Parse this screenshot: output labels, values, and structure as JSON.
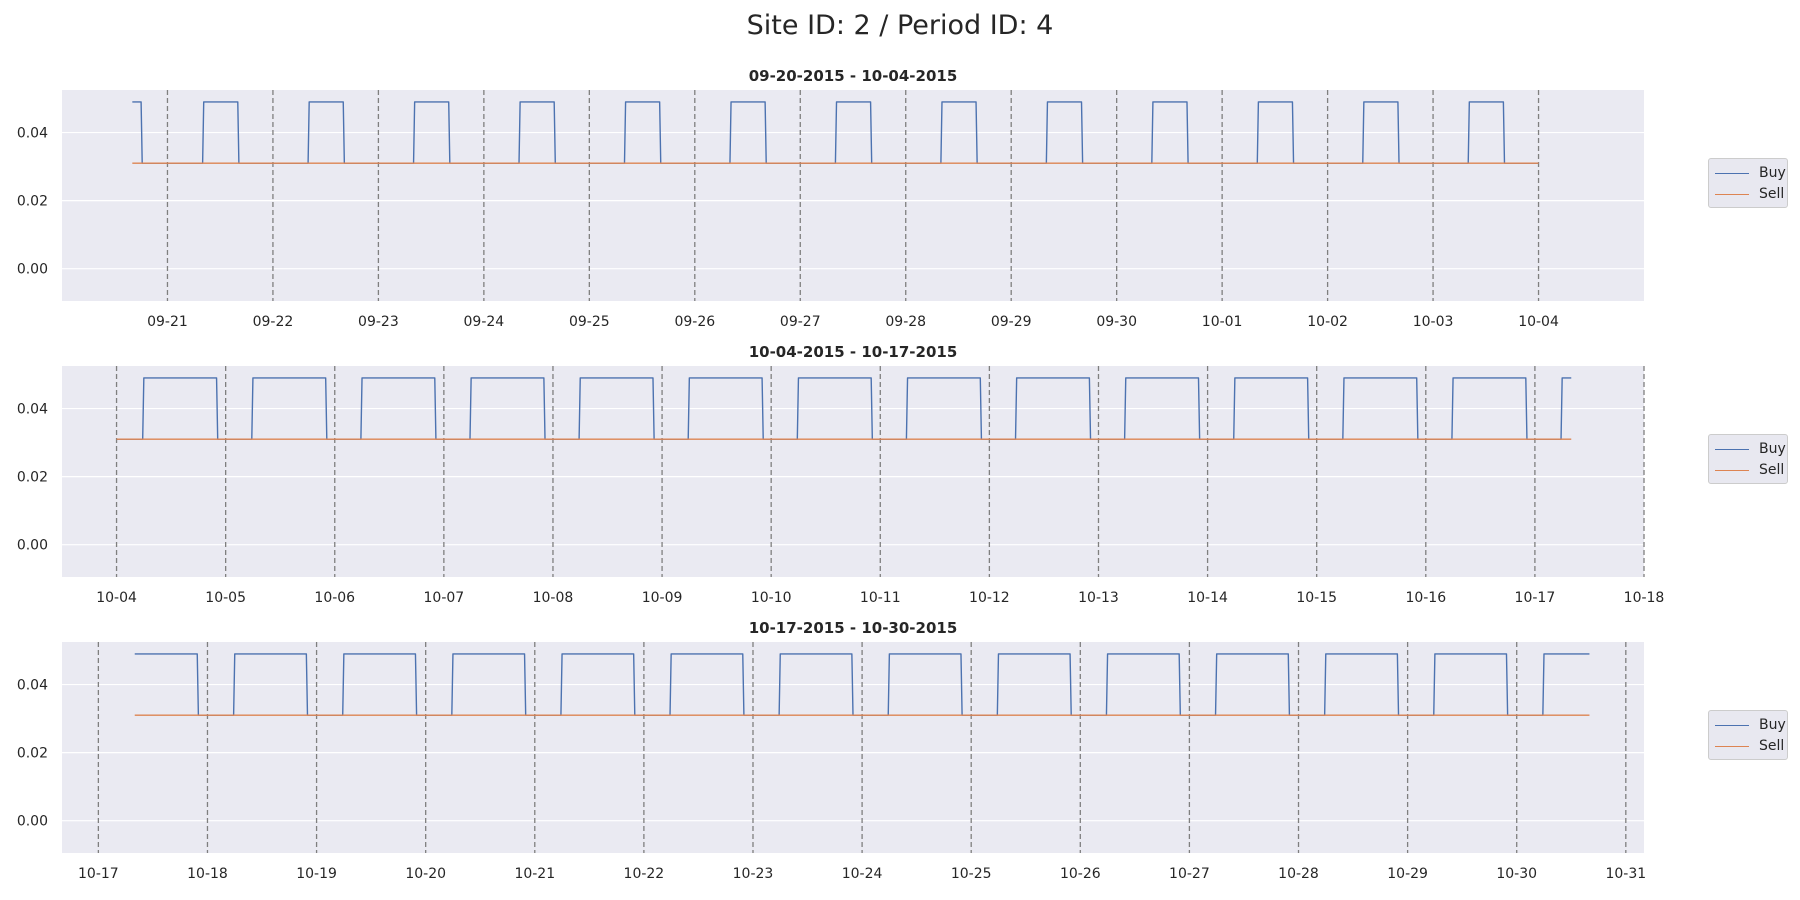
{
  "figure": {
    "suptitle": "Site ID: 2 / Period ID: 4"
  },
  "legend": {
    "buy_label": "Buy",
    "sell_label": "Sell"
  },
  "colors": {
    "buy": "#4c72b0",
    "sell": "#dd8452",
    "axes_bg": "#eaeaf2",
    "grid": "#ffffff",
    "day_divider": "#7f7f7f"
  },
  "chart_data": [
    {
      "type": "line",
      "title": "09-20-2015 - 10-04-2015",
      "xlim": [
        "2015-09-20 00:00",
        "2015-10-05 00:00"
      ],
      "ylim": [
        -0.0095,
        0.0525
      ],
      "yticks": [
        "0.00",
        "0.02",
        "0.04"
      ],
      "ytick_values": [
        0.0,
        0.02,
        0.04
      ],
      "xticks": [
        "09-21",
        "09-22",
        "09-23",
        "09-24",
        "09-25",
        "09-26",
        "09-27",
        "09-28",
        "09-29",
        "09-30",
        "10-01",
        "10-02",
        "10-03",
        "10-04"
      ],
      "xtick_dates": [
        "2015-09-21",
        "2015-09-22",
        "2015-09-23",
        "2015-09-24",
        "2015-09-25",
        "2015-09-26",
        "2015-09-27",
        "2015-09-28",
        "2015-09-29",
        "2015-09-30",
        "2015-10-01",
        "2015-10-02",
        "2015-10-03",
        "2015-10-04"
      ],
      "day_dividers": [
        "2015-09-21",
        "2015-09-22",
        "2015-09-23",
        "2015-09-24",
        "2015-09-25",
        "2015-09-26",
        "2015-09-27",
        "2015-09-28",
        "2015-09-29",
        "2015-09-30",
        "2015-10-01",
        "2015-10-02",
        "2015-10-03",
        "2015-10-04"
      ],
      "grid": true,
      "legend_position": "right",
      "series": [
        {
          "name": "Buy",
          "x": [
            "2015-09-20 16:00",
            "2015-09-20 18:00",
            "2015-09-20 18:15",
            "2015-09-21 08:00",
            "2015-09-21 08:15",
            "2015-09-21 16:00",
            "2015-09-21 16:15",
            "2015-09-22 08:00",
            "2015-09-22 08:15",
            "2015-09-22 16:00",
            "2015-09-22 16:15",
            "2015-09-23 08:00",
            "2015-09-23 08:15",
            "2015-09-23 16:00",
            "2015-09-23 16:15",
            "2015-09-24 08:00",
            "2015-09-24 08:15",
            "2015-09-24 16:00",
            "2015-09-24 16:15",
            "2015-09-25 08:00",
            "2015-09-25 08:15",
            "2015-09-25 16:00",
            "2015-09-25 16:15",
            "2015-09-26 08:00",
            "2015-09-26 08:15",
            "2015-09-26 16:00",
            "2015-09-26 16:15",
            "2015-09-27 08:00",
            "2015-09-27 08:15",
            "2015-09-27 16:00",
            "2015-09-27 16:15",
            "2015-09-28 08:00",
            "2015-09-28 08:15",
            "2015-09-28 16:00",
            "2015-09-28 16:15",
            "2015-09-29 08:00",
            "2015-09-29 08:15",
            "2015-09-29 16:00",
            "2015-09-29 16:15",
            "2015-09-30 08:00",
            "2015-09-30 08:15",
            "2015-09-30 16:00",
            "2015-09-30 16:15",
            "2015-10-01 08:00",
            "2015-10-01 08:15",
            "2015-10-01 16:00",
            "2015-10-01 16:15",
            "2015-10-02 08:00",
            "2015-10-02 08:15",
            "2015-10-02 16:00",
            "2015-10-02 16:15",
            "2015-10-03 08:00",
            "2015-10-03 08:15",
            "2015-10-03 16:00",
            "2015-10-03 16:15",
            "2015-10-04 00:00"
          ],
          "y": [
            0.049,
            0.049,
            0.031,
            0.031,
            0.049,
            0.049,
            0.031,
            0.031,
            0.049,
            0.049,
            0.031,
            0.031,
            0.049,
            0.049,
            0.031,
            0.031,
            0.049,
            0.049,
            0.031,
            0.031,
            0.049,
            0.049,
            0.031,
            0.031,
            0.049,
            0.049,
            0.031,
            0.031,
            0.049,
            0.049,
            0.031,
            0.031,
            0.049,
            0.049,
            0.031,
            0.031,
            0.049,
            0.049,
            0.031,
            0.031,
            0.049,
            0.049,
            0.031,
            0.031,
            0.049,
            0.049,
            0.031,
            0.031,
            0.049,
            0.049,
            0.031,
            0.031,
            0.049,
            0.049,
            0.031,
            0.031
          ]
        },
        {
          "name": "Sell",
          "x": [
            "2015-09-20 16:00",
            "2015-10-04 00:00"
          ],
          "y": [
            0.031,
            0.031
          ]
        }
      ]
    },
    {
      "type": "line",
      "title": "10-04-2015 - 10-17-2015",
      "xlim": [
        "2015-10-03 12:00",
        "2015-10-18 00:00"
      ],
      "ylim": [
        -0.0095,
        0.0525
      ],
      "yticks": [
        "0.00",
        "0.02",
        "0.04"
      ],
      "ytick_values": [
        0.0,
        0.02,
        0.04
      ],
      "xticks": [
        "10-04",
        "10-05",
        "10-06",
        "10-07",
        "10-08",
        "10-09",
        "10-10",
        "10-11",
        "10-12",
        "10-13",
        "10-14",
        "10-15",
        "10-16",
        "10-17",
        "10-18"
      ],
      "xtick_dates": [
        "2015-10-04",
        "2015-10-05",
        "2015-10-06",
        "2015-10-07",
        "2015-10-08",
        "2015-10-09",
        "2015-10-10",
        "2015-10-11",
        "2015-10-12",
        "2015-10-13",
        "2015-10-14",
        "2015-10-15",
        "2015-10-16",
        "2015-10-17",
        "2015-10-18"
      ],
      "day_dividers": [
        "2015-10-04",
        "2015-10-05",
        "2015-10-06",
        "2015-10-07",
        "2015-10-08",
        "2015-10-09",
        "2015-10-10",
        "2015-10-11",
        "2015-10-12",
        "2015-10-13",
        "2015-10-14",
        "2015-10-15",
        "2015-10-16",
        "2015-10-17",
        "2015-10-18"
      ],
      "grid": true,
      "legend_position": "right",
      "series": [
        {
          "name": "Buy",
          "x": [
            "2015-10-04 00:00",
            "2015-10-04 05:45",
            "2015-10-04 06:00",
            "2015-10-04 22:00",
            "2015-10-04 22:15",
            "2015-10-05 05:45",
            "2015-10-05 06:00",
            "2015-10-05 22:00",
            "2015-10-05 22:15",
            "2015-10-06 05:45",
            "2015-10-06 06:00",
            "2015-10-06 22:00",
            "2015-10-06 22:15",
            "2015-10-07 05:45",
            "2015-10-07 06:00",
            "2015-10-07 22:00",
            "2015-10-07 22:15",
            "2015-10-08 05:45",
            "2015-10-08 06:00",
            "2015-10-08 22:00",
            "2015-10-08 22:15",
            "2015-10-09 05:45",
            "2015-10-09 06:00",
            "2015-10-09 22:00",
            "2015-10-09 22:15",
            "2015-10-10 05:45",
            "2015-10-10 06:00",
            "2015-10-10 22:00",
            "2015-10-10 22:15",
            "2015-10-11 05:45",
            "2015-10-11 06:00",
            "2015-10-11 22:00",
            "2015-10-11 22:15",
            "2015-10-12 05:45",
            "2015-10-12 06:00",
            "2015-10-12 22:00",
            "2015-10-12 22:15",
            "2015-10-13 05:45",
            "2015-10-13 06:00",
            "2015-10-13 22:00",
            "2015-10-13 22:15",
            "2015-10-14 05:45",
            "2015-10-14 06:00",
            "2015-10-14 22:00",
            "2015-10-14 22:15",
            "2015-10-15 05:45",
            "2015-10-15 06:00",
            "2015-10-15 22:00",
            "2015-10-15 22:15",
            "2015-10-16 05:45",
            "2015-10-16 06:00",
            "2015-10-16 22:00",
            "2015-10-16 22:15",
            "2015-10-17 05:45",
            "2015-10-17 06:00",
            "2015-10-17 08:00"
          ],
          "y": [
            0.031,
            0.031,
            0.049,
            0.049,
            0.031,
            0.031,
            0.049,
            0.049,
            0.031,
            0.031,
            0.049,
            0.049,
            0.031,
            0.031,
            0.049,
            0.049,
            0.031,
            0.031,
            0.049,
            0.049,
            0.031,
            0.031,
            0.049,
            0.049,
            0.031,
            0.031,
            0.049,
            0.049,
            0.031,
            0.031,
            0.049,
            0.049,
            0.031,
            0.031,
            0.049,
            0.049,
            0.031,
            0.031,
            0.049,
            0.049,
            0.031,
            0.031,
            0.049,
            0.049,
            0.031,
            0.031,
            0.049,
            0.049,
            0.031,
            0.031,
            0.049,
            0.049,
            0.031,
            0.031,
            0.049,
            0.049
          ]
        },
        {
          "name": "Sell",
          "x": [
            "2015-10-04 00:00",
            "2015-10-17 08:00"
          ],
          "y": [
            0.031,
            0.031
          ]
        }
      ]
    },
    {
      "type": "line",
      "title": "10-17-2015 - 10-30-2015",
      "xlim": [
        "2015-10-16 16:00",
        "2015-10-31 04:00"
      ],
      "ylim": [
        -0.0095,
        0.0525
      ],
      "yticks": [
        "0.00",
        "0.02",
        "0.04"
      ],
      "ytick_values": [
        0.0,
        0.02,
        0.04
      ],
      "xticks": [
        "10-17",
        "10-18",
        "10-19",
        "10-20",
        "10-21",
        "10-22",
        "10-23",
        "10-24",
        "10-25",
        "10-26",
        "10-27",
        "10-28",
        "10-29",
        "10-30",
        "10-31"
      ],
      "xtick_dates": [
        "2015-10-17",
        "2015-10-18",
        "2015-10-19",
        "2015-10-20",
        "2015-10-21",
        "2015-10-22",
        "2015-10-23",
        "2015-10-24",
        "2015-10-25",
        "2015-10-26",
        "2015-10-27",
        "2015-10-28",
        "2015-10-29",
        "2015-10-30",
        "2015-10-31"
      ],
      "day_dividers": [
        "2015-10-17",
        "2015-10-18",
        "2015-10-19",
        "2015-10-20",
        "2015-10-21",
        "2015-10-22",
        "2015-10-23",
        "2015-10-24",
        "2015-10-25",
        "2015-10-26",
        "2015-10-27",
        "2015-10-28",
        "2015-10-29",
        "2015-10-30",
        "2015-10-31"
      ],
      "grid": true,
      "legend_position": "right",
      "series": [
        {
          "name": "Buy",
          "x": [
            "2015-10-17 08:00",
            "2015-10-17 21:45",
            "2015-10-17 22:00",
            "2015-10-18 05:45",
            "2015-10-18 06:00",
            "2015-10-18 21:45",
            "2015-10-18 22:00",
            "2015-10-19 05:45",
            "2015-10-19 06:00",
            "2015-10-19 21:45",
            "2015-10-19 22:00",
            "2015-10-20 05:45",
            "2015-10-20 06:00",
            "2015-10-20 21:45",
            "2015-10-20 22:00",
            "2015-10-21 05:45",
            "2015-10-21 06:00",
            "2015-10-21 21:45",
            "2015-10-21 22:00",
            "2015-10-22 05:45",
            "2015-10-22 06:00",
            "2015-10-22 21:45",
            "2015-10-22 22:00",
            "2015-10-23 05:45",
            "2015-10-23 06:00",
            "2015-10-23 21:45",
            "2015-10-23 22:00",
            "2015-10-24 05:45",
            "2015-10-24 06:00",
            "2015-10-24 21:45",
            "2015-10-24 22:00",
            "2015-10-25 05:45",
            "2015-10-25 06:00",
            "2015-10-25 21:45",
            "2015-10-25 22:00",
            "2015-10-26 05:45",
            "2015-10-26 06:00",
            "2015-10-26 21:45",
            "2015-10-26 22:00",
            "2015-10-27 05:45",
            "2015-10-27 06:00",
            "2015-10-27 21:45",
            "2015-10-27 22:00",
            "2015-10-28 05:45",
            "2015-10-28 06:00",
            "2015-10-28 21:45",
            "2015-10-28 22:00",
            "2015-10-29 05:45",
            "2015-10-29 06:00",
            "2015-10-29 21:45",
            "2015-10-29 22:00",
            "2015-10-30 05:45",
            "2015-10-30 06:00",
            "2015-10-30 16:00"
          ],
          "y": [
            0.049,
            0.049,
            0.031,
            0.031,
            0.049,
            0.049,
            0.031,
            0.031,
            0.049,
            0.049,
            0.031,
            0.031,
            0.049,
            0.049,
            0.031,
            0.031,
            0.049,
            0.049,
            0.031,
            0.031,
            0.049,
            0.049,
            0.031,
            0.031,
            0.049,
            0.049,
            0.031,
            0.031,
            0.049,
            0.049,
            0.031,
            0.031,
            0.049,
            0.049,
            0.031,
            0.031,
            0.049,
            0.049,
            0.031,
            0.031,
            0.049,
            0.049,
            0.031,
            0.031,
            0.049,
            0.049,
            0.031,
            0.031,
            0.049,
            0.049,
            0.031,
            0.031,
            0.049,
            0.049
          ]
        },
        {
          "name": "Sell",
          "x": [
            "2015-10-17 08:00",
            "2015-10-30 16:00"
          ],
          "y": [
            0.031,
            0.031
          ]
        }
      ]
    }
  ]
}
